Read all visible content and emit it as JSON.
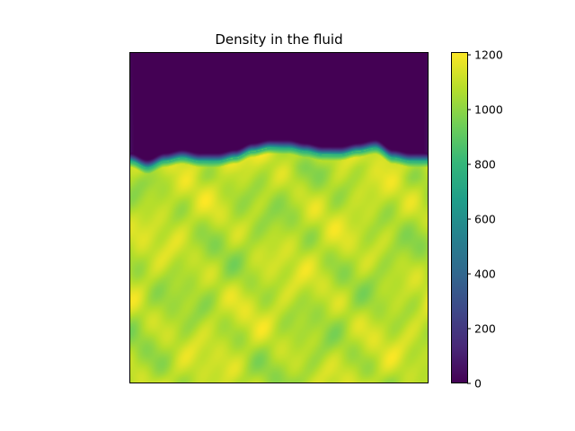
{
  "chart_data": {
    "type": "heatmap",
    "title": "Density in the fluid",
    "xlabel": "",
    "ylabel": "",
    "colormap": "viridis",
    "colorbar": {
      "min": 0,
      "max": 1210,
      "ticks": [
        0,
        200,
        400,
        600,
        800,
        1000,
        1200
      ],
      "tick_labels": [
        "0",
        "200",
        "400",
        "600",
        "800",
        "1000",
        "1200"
      ]
    },
    "field": {
      "description_values": {
        "empty_region_density": 0,
        "fluid_density_range": [
          950,
          1210
        ],
        "free_surface_depth_fraction": 0.33
      },
      "surface_profile": [
        0.33,
        0.35,
        0.33,
        0.32,
        0.33,
        0.33,
        0.32,
        0.3,
        0.29,
        0.29,
        0.3,
        0.31,
        0.31,
        0.3,
        0.29,
        0.32,
        0.33,
        0.33
      ]
    },
    "axes_ticks_visible": false,
    "grid": false
  },
  "colors": {
    "viridis_stops": [
      "#440154",
      "#482878",
      "#3e4989",
      "#31688e",
      "#26828e",
      "#1f9e89",
      "#35b779",
      "#6ece58",
      "#b5de2b",
      "#fde725"
    ]
  }
}
